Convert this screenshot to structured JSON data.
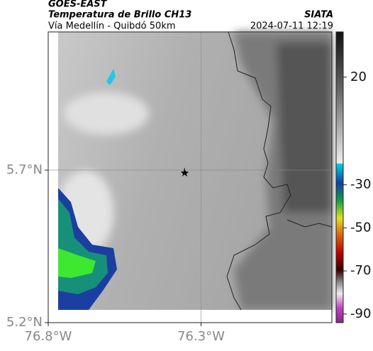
{
  "header": {
    "satellite": "GOES-EAST",
    "title": "Temperatura de Brillo CH13",
    "subtitle": "Vía Medellín - Quibdó 50km",
    "source": "SIATA",
    "datetime": "2024-07-11 12:19"
  },
  "map": {
    "xlim": [
      -76.8,
      -75.872
    ],
    "ylim": [
      5.2,
      6.153
    ],
    "xticks": [
      {
        "value": -76.8,
        "label": "76.8°W"
      },
      {
        "value": -76.3,
        "label": "76.3°W"
      }
    ],
    "yticks": [
      {
        "value": 5.2,
        "label": "5.2°N"
      },
      {
        "value": 5.7,
        "label": "5.7°N"
      }
    ],
    "grid": true
  },
  "colorbar": {
    "clim": [
      41,
      -94
    ],
    "ticks": [
      20,
      -30,
      -50,
      -70,
      -90
    ]
  }
}
